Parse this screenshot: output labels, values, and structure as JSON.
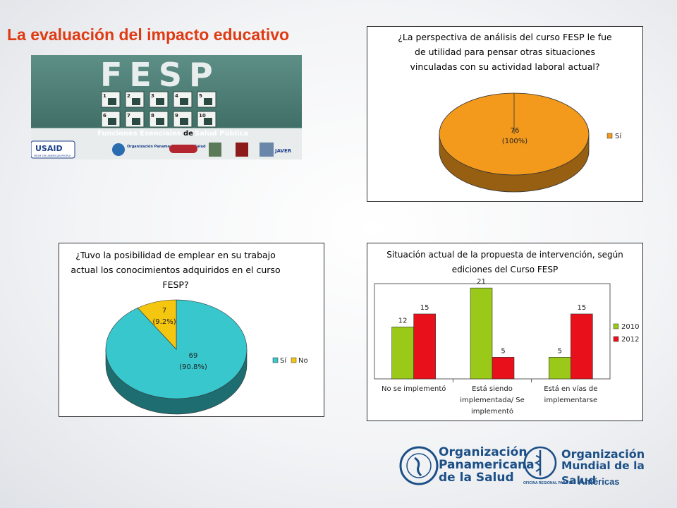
{
  "slide": {
    "title": "La evaluación del impacto educativo"
  },
  "banner": {
    "heading": "FESP",
    "subtitle_a": "Funciones Esenciales",
    "subtitle_b": "de",
    "subtitle_c": "Salud Pública",
    "numbers": [
      "1",
      "2",
      "3",
      "4",
      "5",
      "6",
      "7",
      "8",
      "9",
      "10"
    ],
    "sponsor_usaid": "USAID",
    "sponsor_usaid_sub": "FROM THE AMERICAN PEOPLE",
    "sponsor_ops": "Organización Panamericana de la Salud",
    "sponsor_jav": "JAVER"
  },
  "footer": {
    "paho_line1": "Organización",
    "paho_line2": "Panamericana",
    "paho_line3": "de la Salud",
    "who_line1": "Organización",
    "who_line2": "Mundial de la Salud",
    "who_sub": "OFICINA REGIONAL PARA LAS",
    "who_region": "Américas"
  },
  "chart_data": [
    {
      "type": "pie",
      "title": "¿La perspectiva de análisis del curso FESP le fue de utilidad para pensar otras situaciones vinculadas con su actividad laboral actual?",
      "title_lines": [
        "¿La perspectiva de análisis del curso FESP le fue",
        "de utilidad para pensar otras situaciones",
        "vinculadas con su actividad laboral actual?"
      ],
      "slices": [
        {
          "label": "Sí",
          "value": 76,
          "percent": "(100%)"
        }
      ],
      "value_labels": [
        "76"
      ],
      "legend": [
        "Sí"
      ],
      "legend_position": "right",
      "colors": [
        "#f39a1c"
      ]
    },
    {
      "type": "pie",
      "title": "¿Tuvo la posibilidad de emplear en su trabajo actual los conocimientos adquiridos en el curso FESP?",
      "title_lines": [
        "¿Tuvo la posibilidad de emplear en su trabajo",
        "actual los conocimientos adquiridos en el curso",
        "FESP?"
      ],
      "slices": [
        {
          "label": "Sí",
          "value": 69,
          "percent": "(90.8%)"
        },
        {
          "label": "No",
          "value": 7,
          "percent": "(9.2%)"
        }
      ],
      "value_labels": [
        "69",
        "7"
      ],
      "legend": [
        "Sí",
        "No"
      ],
      "legend_position": "bottom-right",
      "colors": [
        "#37c7cc",
        "#f5c60f"
      ]
    },
    {
      "type": "bar",
      "title": "Situación actual de la propuesta de intervención, según ediciones del Curso FESP",
      "title_lines": [
        "Situación actual de la propuesta de intervención, según",
        "ediciones del Curso FESP"
      ],
      "categories": [
        "No se implementó",
        "Está siendo implementada/ Se implementó",
        "Está en vías de implementarse"
      ],
      "category_lines": [
        [
          "No se implementó"
        ],
        [
          "Está siendo",
          "implementada/ Se",
          "implementó"
        ],
        [
          "Está en vías de",
          "implementarse"
        ]
      ],
      "series": [
        {
          "name": "2010",
          "values": [
            12,
            21,
            5
          ]
        },
        {
          "name": "2012",
          "values": [
            15,
            5,
            15
          ]
        }
      ],
      "value_labels": [
        [
          "12",
          "21",
          "5"
        ],
        [
          "15",
          "5",
          "15"
        ]
      ],
      "ylim": [
        0,
        22
      ],
      "legend_position": "right",
      "colors": [
        "#9ac91a",
        "#e8101a"
      ]
    }
  ]
}
